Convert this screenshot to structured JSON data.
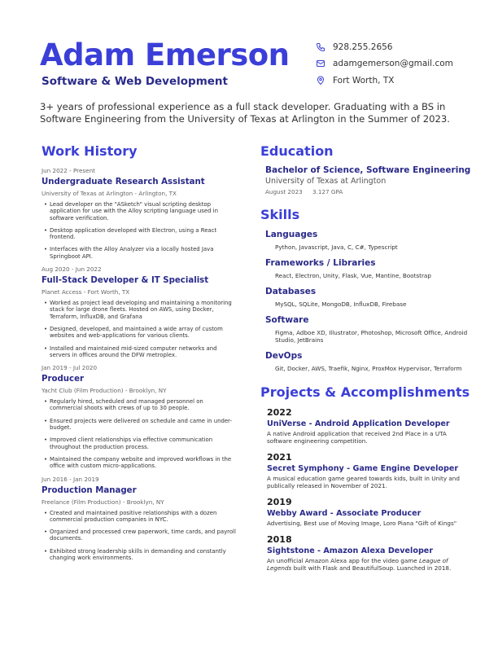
{
  "header": {
    "name": "Adam Emerson",
    "subtitle": "Software & Web Development",
    "phone": "928.255.2656",
    "email": "adamgemerson@gmail.com",
    "location": "Fort Worth, TX",
    "summary": "3+ years of professional experience as a full stack developer. Graduating with a BS in Software Engineering from the University of Texas at Arlington in the Summer of 2023."
  },
  "work": {
    "title": "Work History",
    "jobs": [
      {
        "date": "Jun 2022 - Present",
        "title": "Undergraduate Research Assistant",
        "org": "University of Texas at Arlington - Arlington, TX",
        "bullets": [
          "Lead developer on the \"ASketch\" visual scripting desktop application for use with the Alloy scripting language used in software verification.",
          "Desktop application developed with Electron, using a React frontend.",
          "Interfaces with the Alloy Analyzer via a locally hosted Java Springboot API."
        ]
      },
      {
        "date": "Aug 2020 - Jun 2022",
        "title": "Full-Stack Developer & IT Specialist",
        "org": "Planet Access - Fort Worth, TX",
        "bullets": [
          "Worked as project lead developing and maintaining a monitoring stack for large drone fleets. Hosted on AWS, using Docker, Terraform, InfluxDB, and Grafana",
          "Designed, developed, and maintained a wide array of custom websites and web-applications for various clients.",
          "Installed and maintained mid-sized computer networks and servers in offices around the DFW metroplex."
        ]
      },
      {
        "date": "Jan 2019 - Jul 2020",
        "title": "Producer",
        "org": "Yacht Club  (Film Production) - Brooklyn, NY",
        "bullets": [
          "Regularly hired, scheduled and managed personnel on commercial shoots with crews of up to 30 people.",
          "Ensured projects were delivered on schedule and came in under-budget.",
          "Improved client relationships via effective communication throughout the production process.",
          "Maintained the company website and improved workflows in the office with custom micro-applications."
        ]
      },
      {
        "date": "Jun 2016 - Jan 2019",
        "title": "Production Manager",
        "org": "Freelance (Film Production) - Brooklyn, NY",
        "bullets": [
          "Created and maintained positive relationships with a dozen commercial production companies in NYC.",
          "Organized and processed crew paperwork, time cards, and payroll documents.",
          "Exhibited strong leadership skills in demanding and constantly changing work environments."
        ]
      }
    ]
  },
  "education": {
    "title": "Education",
    "degree": "Bachelor of Science, Software Engineering",
    "school": "University of Texas at Arlington",
    "date": "August 2023",
    "gpa": "3.127 GPA"
  },
  "skills": {
    "title": "Skills",
    "groups": [
      {
        "head": "Languages",
        "body": "Python, Javascript,  Java, C, C#, Typescript"
      },
      {
        "head": "Frameworks / Libraries",
        "body": "React, Electron, Unity, Flask, Vue, Mantine, Bootstrap"
      },
      {
        "head": "Databases",
        "body": "MySQL, SQLite, MongoDB, InfluxDB, Firebase"
      },
      {
        "head": "Software",
        "body": "Figma, Adboe XD, Illustrator, Photoshop, Microsoft Office, Android Studio, JetBrains"
      },
      {
        "head": "DevOps",
        "body": "Git, Docker, AWS, Traefik, Nginx, ProxMox Hypervisor, Terraform"
      }
    ]
  },
  "projects": {
    "title": "Projects & Accomplishments",
    "items": [
      {
        "year": "2022",
        "title": "UniVerse - Android Application Developer",
        "desc": "A native Android application that received 2nd Place in a UTA software engineering competition."
      },
      {
        "year": "2021",
        "title": "Secret Symphony - Game Engine Developer",
        "desc": "A musical education game geared towards kids, built in Unity and publically released in November of 2021."
      },
      {
        "year": "2019",
        "title": "Webby Award - Associate Producer",
        "desc": "Advertising, Best use of Moving Image,  Loro Piana \"Gift of Kings\""
      },
      {
        "year": "2018",
        "title": "Sightstone - Amazon Alexa Developer",
        "desc_pre": "An unofficial Amazon Alexa app for the video game ",
        "desc_em": "League of Legends",
        "desc_post": " built with Flask and BeautifulSoup. Luanched in 2018."
      }
    ]
  }
}
